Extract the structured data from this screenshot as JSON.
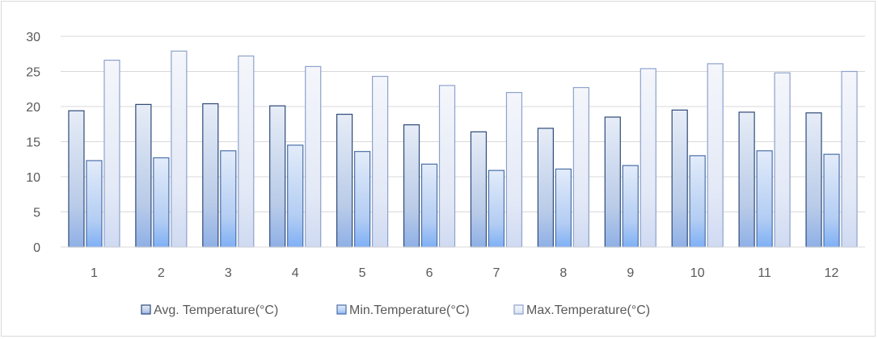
{
  "chart_data": {
    "type": "bar",
    "title": "",
    "xlabel": "",
    "ylabel": "",
    "categories": [
      "1",
      "2",
      "3",
      "4",
      "5",
      "6",
      "7",
      "8",
      "9",
      "10",
      "11",
      "12"
    ],
    "series": [
      {
        "name": "Avg. Temperature(°C)",
        "values": [
          19.4,
          20.3,
          20.4,
          20.1,
          18.9,
          17.4,
          16.4,
          16.9,
          18.5,
          19.5,
          19.2,
          19.1
        ],
        "color": "#dde6f4",
        "stroke": "#2f4a78"
      },
      {
        "name": "Min.Temperature(°C)",
        "values": [
          12.3,
          12.7,
          13.7,
          14.5,
          13.6,
          11.8,
          10.9,
          11.1,
          11.6,
          13.0,
          13.7,
          13.2
        ],
        "color": "#dbe8fb",
        "stroke": "#4a6fa8"
      },
      {
        "name": "Max.Temperature(°C)",
        "values": [
          26.6,
          27.9,
          27.2,
          25.7,
          24.3,
          23.0,
          22.0,
          22.7,
          25.4,
          26.1,
          24.8,
          25.0
        ],
        "color": "#f1f4fb",
        "stroke": "#8ea2cc"
      }
    ],
    "ylim": [
      0,
      30
    ],
    "yticks": [
      0,
      5,
      10,
      15,
      20,
      25,
      30
    ],
    "grid": true,
    "legend_position": "bottom"
  }
}
